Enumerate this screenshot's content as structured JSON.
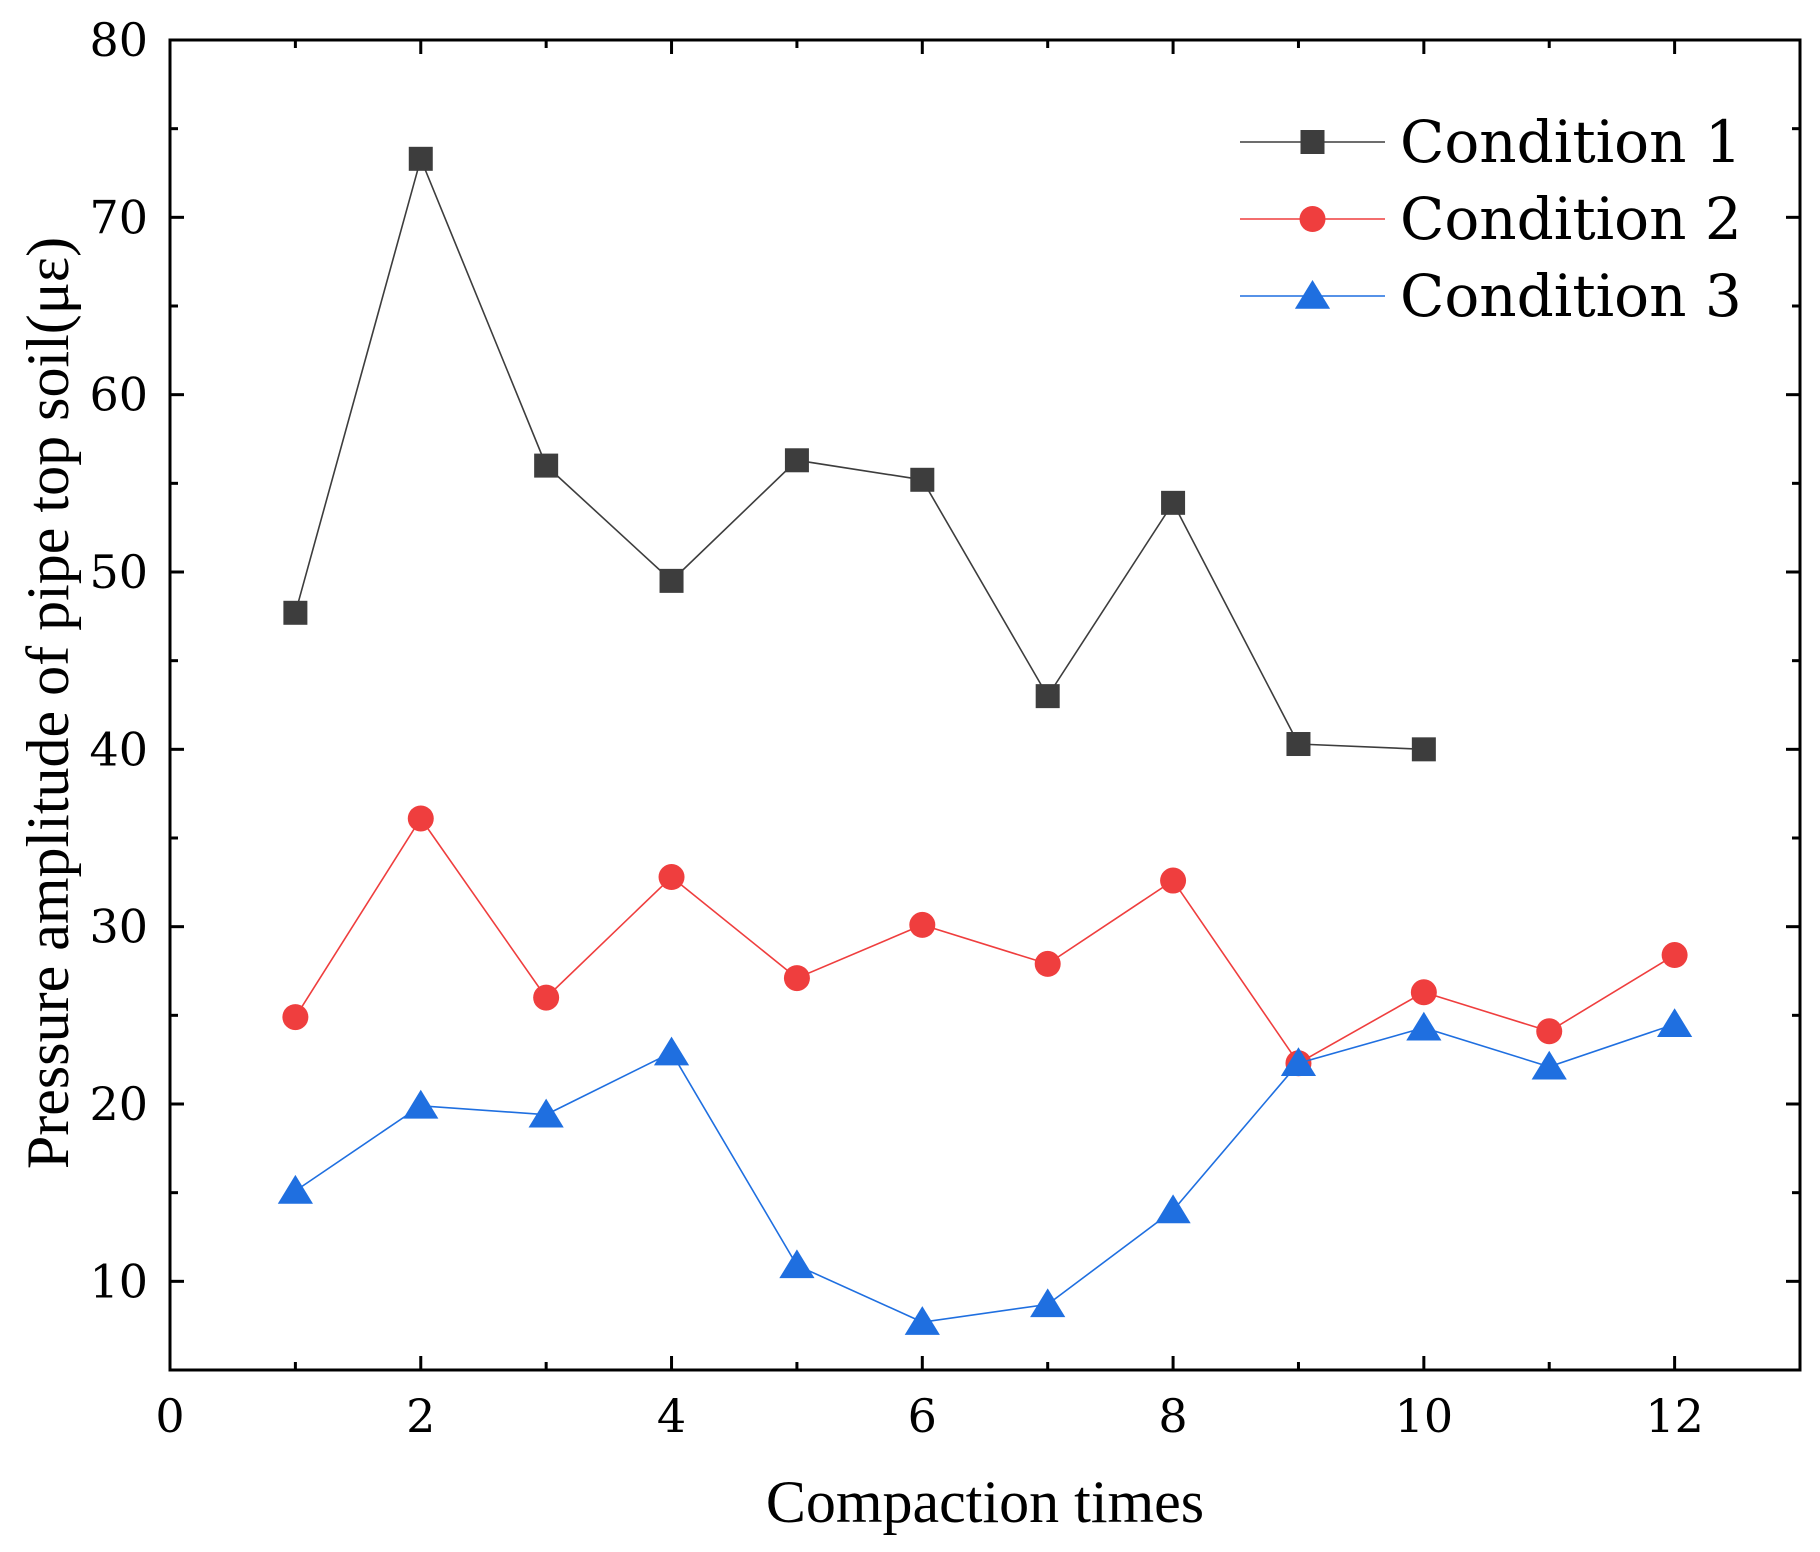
{
  "chart_data": {
    "type": "line",
    "title": "",
    "xlabel": "Compaction times",
    "ylabel": "Pressure amplitude of pipe top soil(με)",
    "xlim": [
      0,
      13
    ],
    "ylim": [
      5,
      80
    ],
    "x_ticks": [
      0,
      2,
      4,
      6,
      8,
      10,
      12
    ],
    "y_ticks": [
      10,
      20,
      30,
      40,
      50,
      60,
      70,
      80
    ],
    "grid": false,
    "legend_position": "top-right",
    "series": [
      {
        "name": "Condition 1",
        "color": "#3d3d3d",
        "marker": "square",
        "x": [
          1,
          2,
          3,
          4,
          5,
          6,
          7,
          8,
          9,
          10
        ],
        "values": [
          47.7,
          73.3,
          56.0,
          49.5,
          56.3,
          55.2,
          43.0,
          53.9,
          40.3,
          40.0
        ]
      },
      {
        "name": "Condition 2",
        "color": "#ef3e3e",
        "marker": "circle",
        "x": [
          1,
          2,
          3,
          4,
          5,
          6,
          7,
          8,
          9,
          10,
          11,
          12
        ],
        "values": [
          24.9,
          36.1,
          26.0,
          32.8,
          27.1,
          30.1,
          27.9,
          32.6,
          22.3,
          26.3,
          24.1,
          28.4
        ]
      },
      {
        "name": "Condition 3",
        "color": "#1f6fe0",
        "marker": "triangle",
        "x": [
          1,
          2,
          3,
          4,
          5,
          6,
          7,
          8,
          9,
          10,
          11,
          12
        ],
        "values": [
          15.1,
          19.9,
          19.4,
          22.9,
          10.9,
          7.7,
          8.7,
          14.0,
          22.3,
          24.3,
          22.1,
          24.5
        ]
      }
    ]
  }
}
